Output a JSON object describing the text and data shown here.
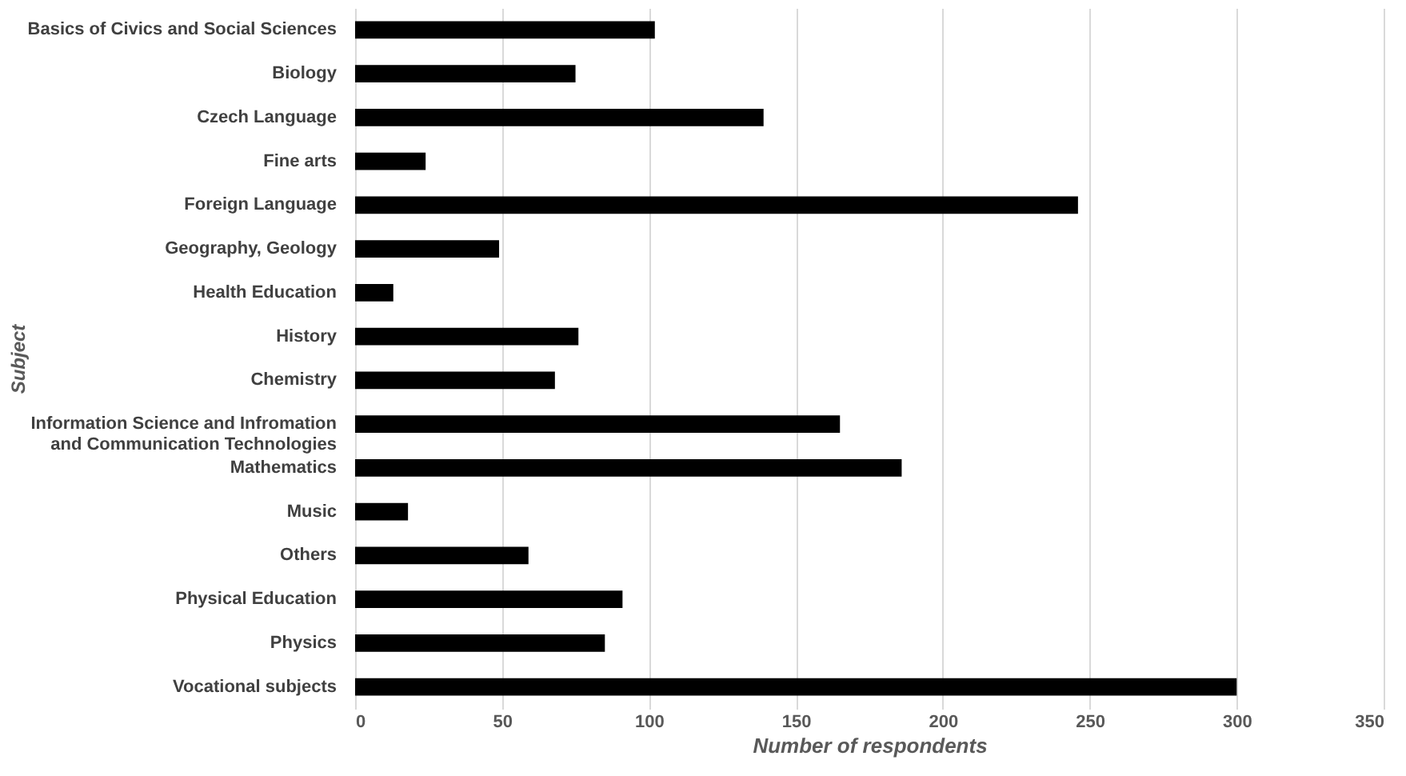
{
  "chart_data": {
    "type": "bar",
    "orientation": "horizontal",
    "xlabel": "Number of respondents",
    "ylabel": "Subject",
    "categories": [
      "Basics of Civics and Social Sciences",
      "Biology",
      "Czech Language",
      "Fine arts",
      "Foreign Language",
      "Geography, Geology",
      "Health Education",
      "History",
      "Chemistry",
      "Information Science and Infromation\nand Communication Technologies",
      "Mathematics",
      "Music",
      "Others",
      "Physical Education",
      "Physics",
      "Vocational subjects"
    ],
    "values": [
      102,
      75,
      139,
      24,
      246,
      49,
      13,
      76,
      68,
      165,
      186,
      18,
      59,
      91,
      85,
      300
    ],
    "color": "#000000",
    "xlim": [
      0,
      350
    ],
    "xticks": [
      0,
      50,
      100,
      150,
      200,
      250,
      300,
      350
    ],
    "grid": "x"
  }
}
